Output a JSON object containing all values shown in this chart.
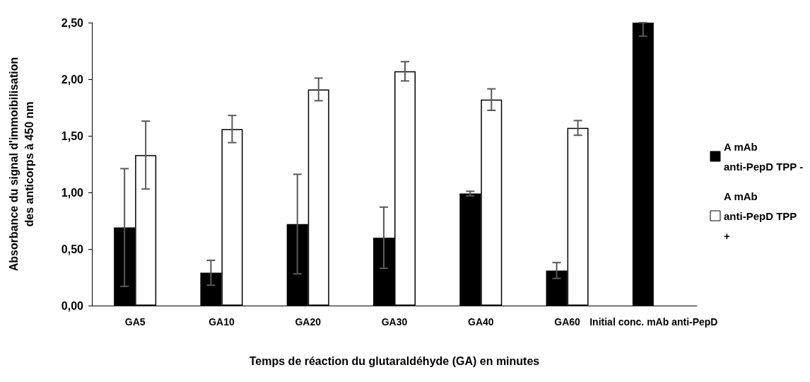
{
  "chart_data": {
    "type": "bar",
    "xlabel": "Temps de réaction du glutaraldéhyde (GA) en minutes",
    "ylabel": "Absorbance du signal d'immoibilisation des anticorps à 450 nm",
    "categories": [
      "GA5",
      "GA10",
      "GA20",
      "GA30",
      "GA40",
      "GA60",
      "Initial conc. mAb anti-PepD"
    ],
    "series": [
      {
        "name": "A mAb anti-PepD TPP -",
        "color": "#000000",
        "values": [
          0.69,
          0.29,
          0.72,
          0.6,
          0.99,
          0.31,
          2.5
        ],
        "errors": [
          0.52,
          0.11,
          0.44,
          0.27,
          0.02,
          0.07,
          [
            2.38,
            2.5
          ]
        ]
      },
      {
        "name": "A mAb anti-PepD TPP +",
        "color": "#ffffff",
        "values": [
          1.33,
          1.56,
          1.91,
          2.07,
          1.82,
          1.57,
          null
        ],
        "errors": [
          0.3,
          0.12,
          0.1,
          0.085,
          0.095,
          0.065,
          null
        ]
      }
    ],
    "ylim": [
      0,
      2.5
    ],
    "yticks": [
      {
        "value": 0,
        "label": "0,00"
      },
      {
        "value": 0.5,
        "label": "0,50"
      },
      {
        "value": 1,
        "label": "1,00"
      },
      {
        "value": 1.5,
        "label": "1,50"
      },
      {
        "value": 2,
        "label": "2,00"
      },
      {
        "value": 2.5,
        "label": "2,50"
      }
    ],
    "grid": false,
    "legend": "right"
  }
}
